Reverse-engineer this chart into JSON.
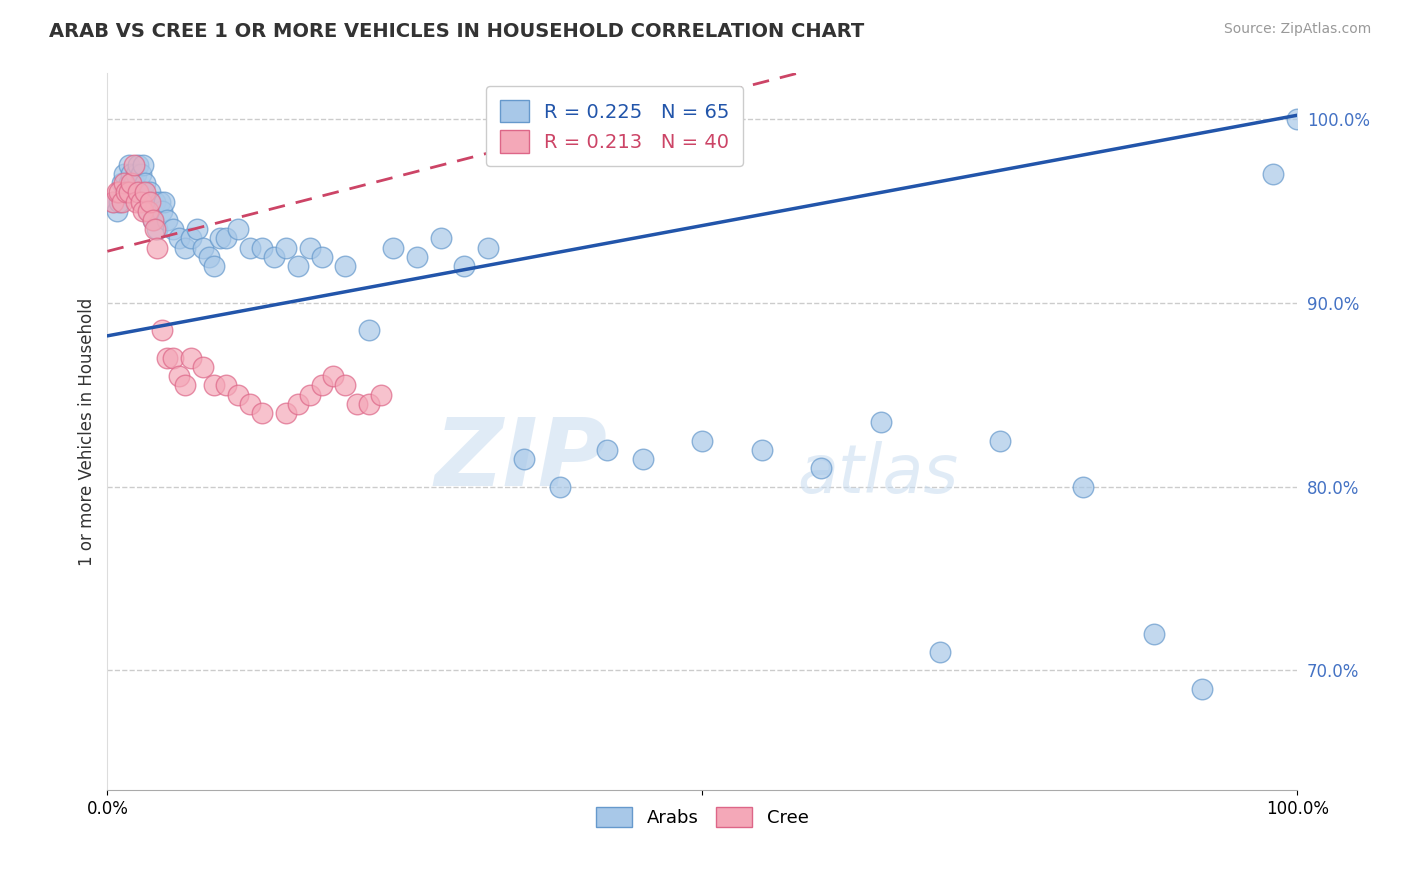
{
  "title": "ARAB VS CREE 1 OR MORE VEHICLES IN HOUSEHOLD CORRELATION CHART",
  "source": "Source: ZipAtlas.com",
  "ylabel": "1 or more Vehicles in Household",
  "watermark_zip": "ZIP",
  "watermark_atlas": "atlas",
  "legend": {
    "arab_R": 0.225,
    "arab_N": 65,
    "cree_R": 0.213,
    "cree_N": 40
  },
  "arab_color": "#A8C8E8",
  "arab_color_edge": "#6699CC",
  "cree_color": "#F4A8B8",
  "cree_color_edge": "#DD6688",
  "arab_line_color": "#2255AA",
  "cree_line_color": "#CC4466",
  "yticks": [
    0.7,
    0.8,
    0.9,
    1.0
  ],
  "xlim": [
    0.0,
    1.0
  ],
  "ylim": [
    0.635,
    1.025
  ],
  "arab_x": [
    0.005,
    0.008,
    0.01,
    0.012,
    0.014,
    0.016,
    0.018,
    0.018,
    0.02,
    0.022,
    0.024,
    0.026,
    0.028,
    0.03,
    0.03,
    0.032,
    0.034,
    0.036,
    0.038,
    0.04,
    0.042,
    0.044,
    0.046,
    0.048,
    0.05,
    0.055,
    0.06,
    0.065,
    0.07,
    0.075,
    0.08,
    0.085,
    0.09,
    0.095,
    0.1,
    0.11,
    0.12,
    0.13,
    0.14,
    0.15,
    0.16,
    0.17,
    0.18,
    0.2,
    0.22,
    0.24,
    0.26,
    0.28,
    0.3,
    0.32,
    0.35,
    0.38,
    0.42,
    0.45,
    0.5,
    0.55,
    0.6,
    0.65,
    0.7,
    0.75,
    0.82,
    0.88,
    0.92,
    0.98,
    1.0
  ],
  "arab_y": [
    0.955,
    0.95,
    0.955,
    0.965,
    0.97,
    0.96,
    0.965,
    0.975,
    0.97,
    0.965,
    0.97,
    0.975,
    0.97,
    0.96,
    0.975,
    0.965,
    0.95,
    0.96,
    0.945,
    0.955,
    0.94,
    0.955,
    0.95,
    0.955,
    0.945,
    0.94,
    0.935,
    0.93,
    0.935,
    0.94,
    0.93,
    0.925,
    0.92,
    0.935,
    0.935,
    0.94,
    0.93,
    0.93,
    0.925,
    0.93,
    0.92,
    0.93,
    0.925,
    0.92,
    0.885,
    0.93,
    0.925,
    0.935,
    0.92,
    0.93,
    0.815,
    0.8,
    0.82,
    0.815,
    0.825,
    0.82,
    0.81,
    0.835,
    0.71,
    0.825,
    0.8,
    0.72,
    0.69,
    0.97,
    1.0
  ],
  "cree_x": [
    0.005,
    0.008,
    0.01,
    0.012,
    0.014,
    0.016,
    0.018,
    0.02,
    0.022,
    0.024,
    0.026,
    0.028,
    0.03,
    0.032,
    0.034,
    0.036,
    0.038,
    0.04,
    0.042,
    0.046,
    0.05,
    0.055,
    0.06,
    0.065,
    0.07,
    0.08,
    0.09,
    0.1,
    0.11,
    0.12,
    0.13,
    0.15,
    0.16,
    0.17,
    0.18,
    0.19,
    0.2,
    0.21,
    0.22,
    0.23
  ],
  "cree_y": [
    0.955,
    0.96,
    0.96,
    0.955,
    0.965,
    0.96,
    0.96,
    0.965,
    0.975,
    0.955,
    0.96,
    0.955,
    0.95,
    0.96,
    0.95,
    0.955,
    0.945,
    0.94,
    0.93,
    0.885,
    0.87,
    0.87,
    0.86,
    0.855,
    0.87,
    0.865,
    0.855,
    0.855,
    0.85,
    0.845,
    0.84,
    0.84,
    0.845,
    0.85,
    0.855,
    0.86,
    0.855,
    0.845,
    0.845,
    0.85
  ]
}
